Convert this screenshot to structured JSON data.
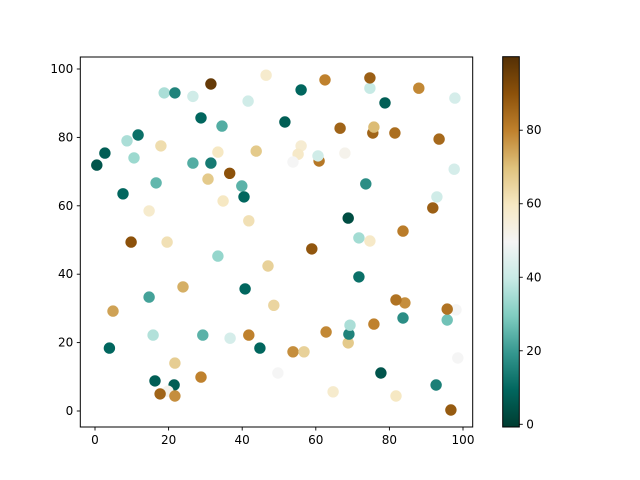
{
  "figure": {
    "background": "#ffffff",
    "title": "",
    "xlabel": "",
    "ylabel": ""
  },
  "chart_data": {
    "type": "scatter",
    "title": "",
    "xlabel": "",
    "ylabel": "",
    "xlim": [
      -4.0,
      102.6
    ],
    "ylim": [
      -4.7,
      103.5
    ],
    "xticks": [
      0,
      20,
      40,
      60,
      80,
      100
    ],
    "yticks": [
      0,
      20,
      40,
      60,
      80,
      100
    ],
    "grid": false,
    "marker_size_px": 5.7,
    "colormap": {
      "name": "BrBG_r",
      "stops": [
        {
          "t": 0.0,
          "color": "#003c30"
        },
        {
          "t": 0.1,
          "color": "#01665e"
        },
        {
          "t": 0.2,
          "color": "#35978f"
        },
        {
          "t": 0.3,
          "color": "#80cdc1"
        },
        {
          "t": 0.4,
          "color": "#c7eae5"
        },
        {
          "t": 0.5,
          "color": "#f5f5f5"
        },
        {
          "t": 0.6,
          "color": "#f6e8c3"
        },
        {
          "t": 0.7,
          "color": "#dfc27d"
        },
        {
          "t": 0.8,
          "color": "#bf812d"
        },
        {
          "t": 0.9,
          "color": "#8c510a"
        },
        {
          "t": 1.0,
          "color": "#543005"
        }
      ]
    },
    "colorbar": {
      "vmin": 0,
      "vmax": 100,
      "ticks": [
        0,
        20,
        40,
        60,
        80
      ],
      "position": "right"
    },
    "points": [
      {
        "x": 18.8,
        "y": 93.0,
        "c": 36
      },
      {
        "x": 21.7,
        "y": 93.0,
        "c": 16
      },
      {
        "x": 26.6,
        "y": 92.0,
        "c": 42
      },
      {
        "x": 31.5,
        "y": 95.6,
        "c": 97
      },
      {
        "x": 28.8,
        "y": 85.7,
        "c": 10
      },
      {
        "x": 11.7,
        "y": 80.7,
        "c": 12
      },
      {
        "x": 8.7,
        "y": 79.0,
        "c": 36
      },
      {
        "x": 2.7,
        "y": 75.4,
        "c": 8
      },
      {
        "x": 0.5,
        "y": 71.9,
        "c": 6
      },
      {
        "x": 10.6,
        "y": 74.0,
        "c": 34
      },
      {
        "x": 17.9,
        "y": 77.5,
        "c": 63
      },
      {
        "x": 26.6,
        "y": 72.5,
        "c": 24
      },
      {
        "x": 31.5,
        "y": 72.5,
        "c": 14
      },
      {
        "x": 16.6,
        "y": 66.7,
        "c": 26
      },
      {
        "x": 30.7,
        "y": 67.8,
        "c": 68
      },
      {
        "x": 46.5,
        "y": 98.2,
        "c": 58
      },
      {
        "x": 62.5,
        "y": 96.8,
        "c": 80
      },
      {
        "x": 56.0,
        "y": 93.9,
        "c": 10
      },
      {
        "x": 41.6,
        "y": 90.6,
        "c": 42
      },
      {
        "x": 51.6,
        "y": 84.5,
        "c": 8
      },
      {
        "x": 34.5,
        "y": 83.3,
        "c": 24
      },
      {
        "x": 66.6,
        "y": 82.7,
        "c": 86
      },
      {
        "x": 33.4,
        "y": 75.7,
        "c": 60
      },
      {
        "x": 43.8,
        "y": 76.0,
        "c": 68
      },
      {
        "x": 56.0,
        "y": 77.5,
        "c": 57
      },
      {
        "x": 55.2,
        "y": 75.1,
        "c": 59
      },
      {
        "x": 60.9,
        "y": 73.1,
        "c": 82
      },
      {
        "x": 60.6,
        "y": 74.6,
        "c": 42
      },
      {
        "x": 53.8,
        "y": 72.8,
        "c": 50
      },
      {
        "x": 36.6,
        "y": 69.5,
        "c": 90
      },
      {
        "x": 74.7,
        "y": 94.4,
        "c": 40
      },
      {
        "x": 74.7,
        "y": 97.4,
        "c": 87
      },
      {
        "x": 88.0,
        "y": 94.4,
        "c": 79
      },
      {
        "x": 78.8,
        "y": 90.1,
        "c": 8
      },
      {
        "x": 97.8,
        "y": 91.5,
        "c": 43
      },
      {
        "x": 75.5,
        "y": 81.3,
        "c": 86
      },
      {
        "x": 75.8,
        "y": 83.0,
        "c": 71
      },
      {
        "x": 81.5,
        "y": 81.3,
        "c": 84
      },
      {
        "x": 93.5,
        "y": 79.5,
        "c": 85
      },
      {
        "x": 67.9,
        "y": 75.4,
        "c": 52
      },
      {
        "x": 97.6,
        "y": 70.7,
        "c": 43
      },
      {
        "x": 7.6,
        "y": 63.5,
        "c": 10
      },
      {
        "x": 14.7,
        "y": 58.5,
        "c": 58
      },
      {
        "x": 9.8,
        "y": 49.4,
        "c": 90
      },
      {
        "x": 19.6,
        "y": 49.4,
        "c": 62
      },
      {
        "x": 23.9,
        "y": 36.3,
        "c": 73
      },
      {
        "x": 14.7,
        "y": 33.3,
        "c": 22
      },
      {
        "x": 39.9,
        "y": 65.8,
        "c": 25
      },
      {
        "x": 40.5,
        "y": 62.6,
        "c": 10
      },
      {
        "x": 34.8,
        "y": 61.4,
        "c": 60
      },
      {
        "x": 41.8,
        "y": 55.6,
        "c": 62
      },
      {
        "x": 58.9,
        "y": 47.4,
        "c": 89
      },
      {
        "x": 33.4,
        "y": 45.3,
        "c": 33
      },
      {
        "x": 47.0,
        "y": 42.4,
        "c": 66
      },
      {
        "x": 40.8,
        "y": 35.7,
        "c": 10
      },
      {
        "x": 73.6,
        "y": 66.4,
        "c": 18
      },
      {
        "x": 91.8,
        "y": 59.4,
        "c": 87
      },
      {
        "x": 92.9,
        "y": 62.6,
        "c": 42
      },
      {
        "x": 68.8,
        "y": 56.4,
        "c": 4
      },
      {
        "x": 83.7,
        "y": 52.6,
        "c": 81
      },
      {
        "x": 71.7,
        "y": 50.6,
        "c": 35
      },
      {
        "x": 74.7,
        "y": 49.7,
        "c": 59
      },
      {
        "x": 71.7,
        "y": 39.2,
        "c": 12
      },
      {
        "x": 4.9,
        "y": 29.2,
        "c": 75
      },
      {
        "x": 15.8,
        "y": 22.2,
        "c": 37
      },
      {
        "x": 29.3,
        "y": 22.2,
        "c": 25
      },
      {
        "x": 3.9,
        "y": 18.4,
        "c": 10
      },
      {
        "x": 21.7,
        "y": 14.0,
        "c": 67
      },
      {
        "x": 16.3,
        "y": 8.8,
        "c": 8
      },
      {
        "x": 28.8,
        "y": 9.9,
        "c": 80
      },
      {
        "x": 21.5,
        "y": 7.6,
        "c": 8
      },
      {
        "x": 19.8,
        "y": 5.8,
        "c": 52
      },
      {
        "x": 17.7,
        "y": 5.0,
        "c": 86
      },
      {
        "x": 21.7,
        "y": 4.4,
        "c": 78
      },
      {
        "x": 48.6,
        "y": 30.9,
        "c": 65
      },
      {
        "x": 36.7,
        "y": 21.3,
        "c": 43
      },
      {
        "x": 41.8,
        "y": 22.2,
        "c": 80
      },
      {
        "x": 44.8,
        "y": 18.4,
        "c": 10
      },
      {
        "x": 53.8,
        "y": 17.3,
        "c": 78
      },
      {
        "x": 56.8,
        "y": 17.3,
        "c": 66
      },
      {
        "x": 62.8,
        "y": 23.1,
        "c": 79
      },
      {
        "x": 68.8,
        "y": 19.9,
        "c": 68
      },
      {
        "x": 69.0,
        "y": 22.5,
        "c": 16
      },
      {
        "x": 69.3,
        "y": 25.1,
        "c": 36
      },
      {
        "x": 49.7,
        "y": 11.1,
        "c": 50
      },
      {
        "x": 64.7,
        "y": 5.6,
        "c": 58
      },
      {
        "x": 98.1,
        "y": 29.6,
        "c": 50
      },
      {
        "x": 95.7,
        "y": 26.6,
        "c": 28
      },
      {
        "x": 95.7,
        "y": 29.8,
        "c": 83
      },
      {
        "x": 83.7,
        "y": 27.2,
        "c": 18
      },
      {
        "x": 84.2,
        "y": 31.6,
        "c": 78
      },
      {
        "x": 81.8,
        "y": 32.5,
        "c": 83
      },
      {
        "x": 75.8,
        "y": 25.4,
        "c": 80
      },
      {
        "x": 98.6,
        "y": 15.5,
        "c": 50
      },
      {
        "x": 77.7,
        "y": 11.1,
        "c": 6
      },
      {
        "x": 92.7,
        "y": 7.6,
        "c": 15
      },
      {
        "x": 81.8,
        "y": 4.4,
        "c": 60
      },
      {
        "x": 96.7,
        "y": 0.3,
        "c": 88
      }
    ]
  }
}
